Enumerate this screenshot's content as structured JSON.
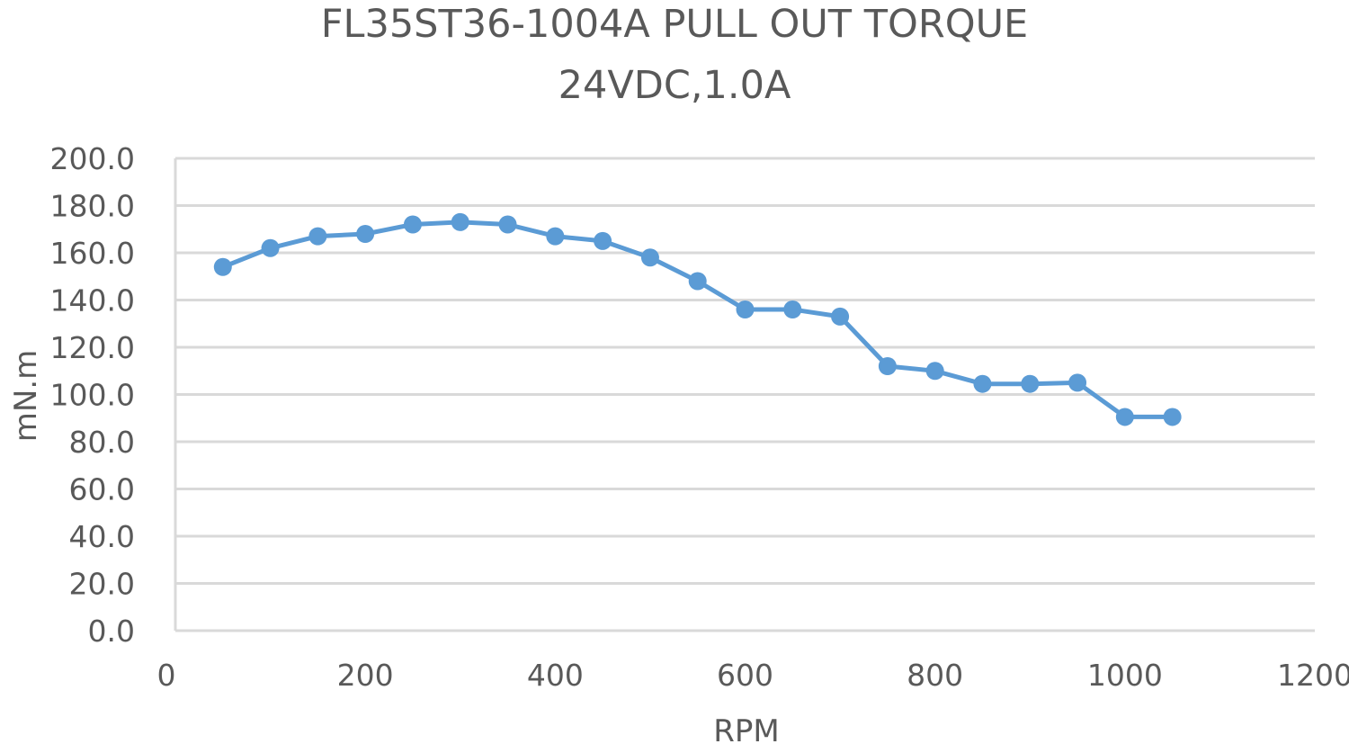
{
  "chart_data": {
    "type": "line",
    "title_lines": [
      "FL35ST36-1004A PULL OUT TORQUE",
      "24VDC,1.0A"
    ],
    "xlabel": "RPM",
    "ylabel": "mN.m",
    "xlim": [
      0,
      1200
    ],
    "ylim": [
      0,
      200
    ],
    "x_ticks": [
      0,
      200,
      400,
      600,
      800,
      1000,
      1200
    ],
    "x_tick_labels": [
      "0",
      "200",
      "400",
      "600",
      "800",
      "1000",
      "1200"
    ],
    "y_ticks": [
      0,
      20,
      40,
      60,
      80,
      100,
      120,
      140,
      160,
      180,
      200
    ],
    "y_tick_labels": [
      "0.0",
      "20.0",
      "40.0",
      "60.0",
      "80.0",
      "100.0",
      "120.0",
      "140.0",
      "160.0",
      "180.0",
      "200.0"
    ],
    "grid": "horizontal",
    "legend": "none",
    "series": [
      {
        "color": "#5b9bd5",
        "marker": "circle",
        "x": [
          50,
          100,
          150,
          200,
          250,
          300,
          350,
          400,
          450,
          500,
          550,
          600,
          650,
          700,
          750,
          800,
          850,
          900,
          950,
          1000,
          1050
        ],
        "y": [
          154,
          162,
          167,
          168,
          172,
          173,
          172,
          167,
          165,
          158,
          148,
          136,
          136,
          133,
          112,
          110,
          104.5,
          104.5,
          105,
          90.5,
          90.5
        ]
      }
    ]
  }
}
